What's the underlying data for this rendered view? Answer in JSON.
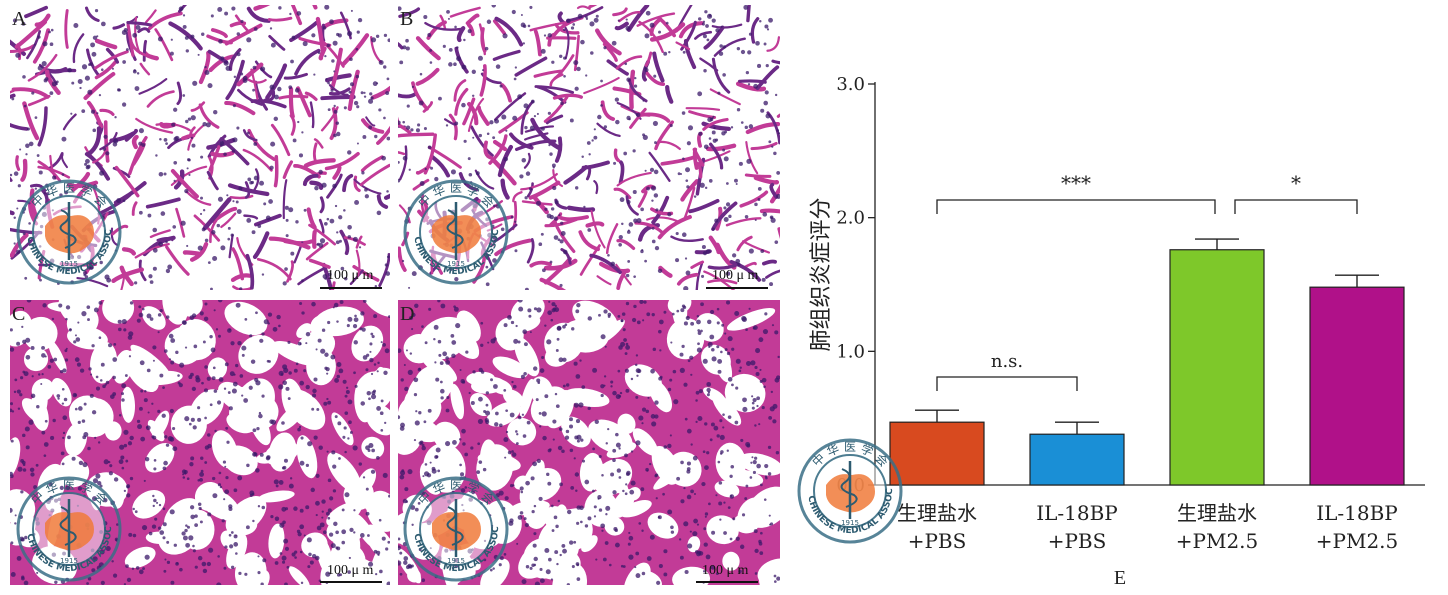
{
  "panels": [
    {
      "label": "A",
      "scale": "100 μ m",
      "density": "low"
    },
    {
      "label": "B",
      "scale": "100 μ m",
      "density": "low"
    },
    {
      "label": "C",
      "scale": "100 μ m",
      "density": "high"
    },
    {
      "label": "D",
      "scale": "100 μ m",
      "density": "high"
    }
  ],
  "watermark": {
    "text_top": "中 华 医 学 会",
    "text_ring": "CHINESE MEDICAL ASSOCIATION",
    "year": "1915"
  },
  "colors": {
    "tissue_pink": "#c23b97",
    "tissue_purple": "#6b2a86",
    "nuclei": "#3b1a6a"
  },
  "chart_data": {
    "type": "bar",
    "panel_label": "E",
    "ylabel": "肺组织炎症评分",
    "ylim": [
      0,
      3
    ],
    "yticks": [
      "0.0",
      "1.0",
      "2.0",
      "3.0"
    ],
    "categories": [
      [
        "生理盐水",
        "+PBS"
      ],
      [
        "IL-18BP",
        "+PBS"
      ],
      [
        "生理盐水",
        "+PM2.5"
      ],
      [
        "IL-18BP",
        "+PM2.5"
      ]
    ],
    "values": [
      0.47,
      0.38,
      1.76,
      1.48
    ],
    "errors": [
      0.09,
      0.09,
      0.08,
      0.09
    ],
    "colors": [
      "#d84a1f",
      "#1a8fd6",
      "#7ec82a",
      "#b01189"
    ],
    "significance": [
      {
        "from": 0,
        "to": 1,
        "label": "n.s."
      },
      {
        "from": 0,
        "to": 2,
        "label": "***"
      },
      {
        "from": 2,
        "to": 3,
        "label": "*"
      }
    ]
  }
}
